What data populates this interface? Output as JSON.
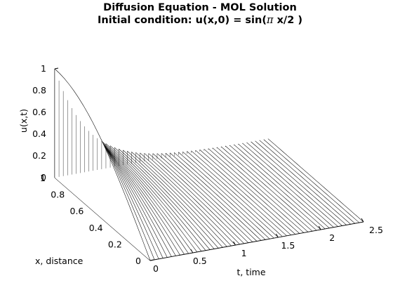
{
  "chart_data": {
    "type": "surface-mesh",
    "title": "Diffusion Equation - MOL Solution",
    "subtitle_prefix": "Initial condition: u(x,0) = sin(",
    "subtitle_pi": "π",
    "subtitle_suffix": " x/2 )",
    "zlabel": "u(x,t)",
    "xlabel": "x, distance",
    "tlabel": "t, time",
    "z_ticks": [
      "0",
      "0.2",
      "0.4",
      "0.6",
      "0.8",
      "1"
    ],
    "x_ticks": [
      "0",
      "0.2",
      "0.4",
      "0.6",
      "0.8",
      "1"
    ],
    "t_ticks": [
      "0",
      "0.5",
      "1",
      "1.5",
      "2",
      "2.5"
    ],
    "zlim": [
      0,
      1
    ],
    "xlim": [
      0,
      1
    ],
    "tlim": [
      0,
      2.5
    ],
    "t_curves": 51,
    "x_grid": 21,
    "initial_condition": "u(x,0) = sin(pi x/2)"
  }
}
